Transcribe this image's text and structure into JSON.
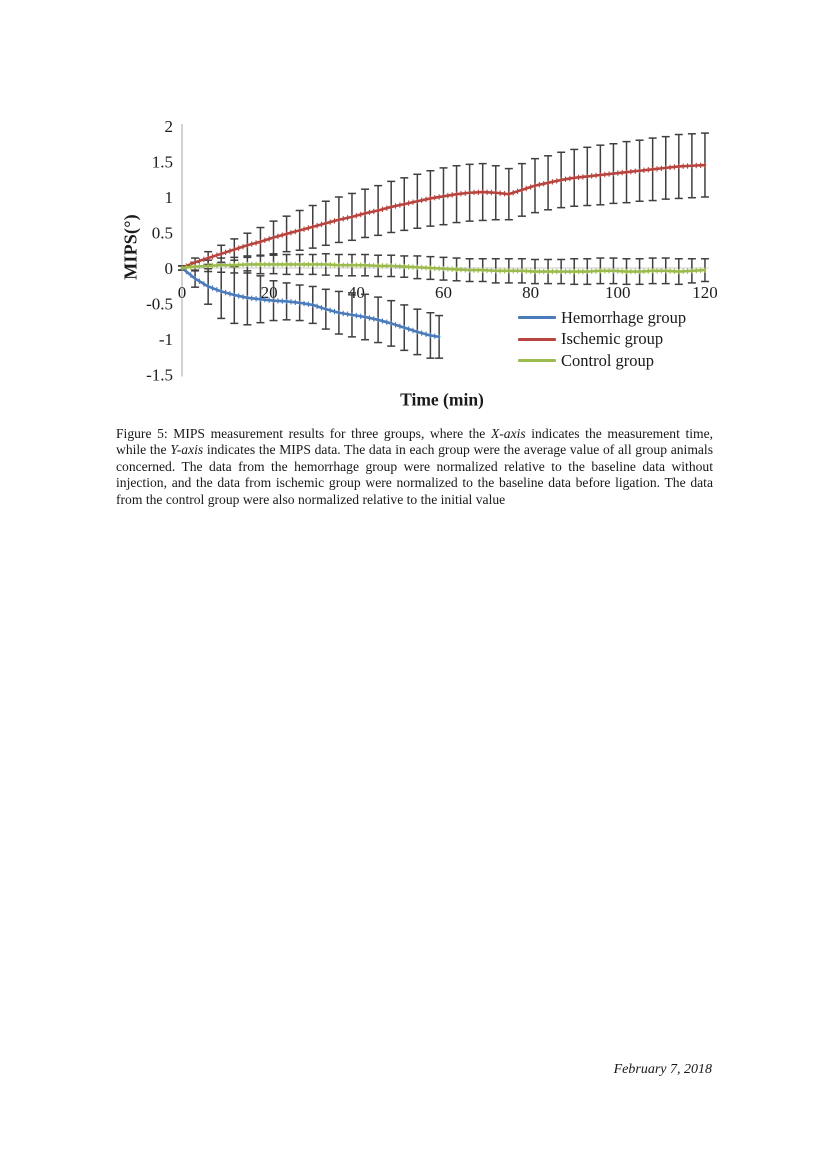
{
  "caption": {
    "part1": "Figure 5: MIPS measurement results for three groups, where the ",
    "italic1": "X-axis",
    "part2": " indicates the measurement time, while the ",
    "italic2": "Y-axis",
    "part3": " indicates the MIPS data. The data in each group were the average value of all group animals concerned. The data from the hemorrhage group were normalized relative to the baseline data without injection, and the data from ischemic group were normalized to the baseline data before ligation. The data from the control group were also normalized relative to the initial value"
  },
  "footer": {
    "date": "February 7, 2018"
  },
  "chart_data": {
    "type": "line",
    "title": "",
    "xlabel": "Time (min)",
    "ylabel": "MIPS(°)",
    "xlim": [
      0,
      120
    ],
    "ylim": [
      -1.5,
      2
    ],
    "xticks": [
      0,
      20,
      40,
      60,
      80,
      100,
      120
    ],
    "yticks": [
      -1.5,
      -1,
      -0.5,
      0,
      0.5,
      1,
      1.5,
      2
    ],
    "grid": false,
    "error_bars": true,
    "legend_position": "inside-lower-right",
    "colors": {
      "error_bar": "#3f3f3f",
      "axis_line": "#c6c6c6",
      "zero_line": "#cccccc",
      "tick_text": "#1d1d1d"
    },
    "series": [
      {
        "name": "Hemorrhage group",
        "color": "#4b7bbb",
        "x": [
          0,
          3,
          6,
          9,
          12,
          15,
          18,
          21,
          24,
          27,
          30,
          33,
          36,
          39,
          42,
          45,
          48,
          51,
          54,
          57,
          59
        ],
        "y": [
          0,
          -0.15,
          -0.26,
          -0.33,
          -0.38,
          -0.42,
          -0.44,
          -0.46,
          -0.47,
          -0.49,
          -0.52,
          -0.58,
          -0.63,
          -0.66,
          -0.69,
          -0.73,
          -0.78,
          -0.84,
          -0.9,
          -0.95,
          -0.97
        ],
        "err": [
          0.03,
          0.12,
          0.25,
          0.38,
          0.4,
          0.38,
          0.33,
          0.28,
          0.26,
          0.25,
          0.26,
          0.28,
          0.3,
          0.31,
          0.32,
          0.32,
          0.32,
          0.32,
          0.32,
          0.32,
          0.3
        ]
      },
      {
        "name": "Ischemic group",
        "color": "#b7443e",
        "x": [
          0,
          3,
          6,
          9,
          12,
          15,
          18,
          21,
          24,
          27,
          30,
          33,
          36,
          39,
          42,
          45,
          48,
          51,
          54,
          57,
          60,
          63,
          66,
          69,
          72,
          75,
          78,
          81,
          84,
          87,
          90,
          93,
          96,
          99,
          102,
          105,
          108,
          111,
          114,
          117,
          120
        ],
        "y": [
          0,
          0.08,
          0.14,
          0.2,
          0.26,
          0.32,
          0.37,
          0.43,
          0.48,
          0.53,
          0.58,
          0.63,
          0.68,
          0.72,
          0.77,
          0.81,
          0.86,
          0.9,
          0.94,
          0.98,
          1.01,
          1.04,
          1.06,
          1.07,
          1.06,
          1.04,
          1.1,
          1.16,
          1.2,
          1.24,
          1.27,
          1.29,
          1.31,
          1.33,
          1.35,
          1.37,
          1.39,
          1.41,
          1.43,
          1.44,
          1.45
        ],
        "err": [
          0.03,
          0.06,
          0.09,
          0.12,
          0.15,
          0.17,
          0.2,
          0.23,
          0.25,
          0.28,
          0.3,
          0.31,
          0.32,
          0.33,
          0.34,
          0.35,
          0.36,
          0.37,
          0.38,
          0.39,
          0.4,
          0.4,
          0.4,
          0.4,
          0.38,
          0.36,
          0.37,
          0.38,
          0.38,
          0.39,
          0.4,
          0.41,
          0.42,
          0.42,
          0.43,
          0.43,
          0.44,
          0.44,
          0.45,
          0.45,
          0.45
        ]
      },
      {
        "name": "Control group",
        "color": "#9cbb4e",
        "x": [
          0,
          3,
          6,
          9,
          12,
          15,
          18,
          21,
          24,
          27,
          30,
          33,
          36,
          39,
          42,
          45,
          48,
          51,
          54,
          57,
          60,
          63,
          66,
          69,
          72,
          75,
          78,
          81,
          84,
          87,
          90,
          93,
          96,
          99,
          102,
          105,
          108,
          111,
          114,
          117,
          120
        ],
        "y": [
          0,
          0.02,
          0.03,
          0.04,
          0.04,
          0.05,
          0.05,
          0.05,
          0.05,
          0.05,
          0.05,
          0.05,
          0.04,
          0.04,
          0.04,
          0.03,
          0.03,
          0.02,
          0.01,
          0,
          -0.01,
          -0.02,
          -0.03,
          -0.03,
          -0.04,
          -0.04,
          -0.04,
          -0.05,
          -0.05,
          -0.05,
          -0.05,
          -0.05,
          -0.04,
          -0.04,
          -0.05,
          -0.05,
          -0.04,
          -0.04,
          -0.05,
          -0.04,
          -0.03
        ],
        "err": [
          0.03,
          0.06,
          0.08,
          0.1,
          0.11,
          0.12,
          0.13,
          0.13,
          0.14,
          0.14,
          0.14,
          0.15,
          0.15,
          0.15,
          0.15,
          0.15,
          0.15,
          0.15,
          0.16,
          0.16,
          0.16,
          0.16,
          0.16,
          0.16,
          0.17,
          0.17,
          0.17,
          0.17,
          0.17,
          0.17,
          0.18,
          0.18,
          0.18,
          0.18,
          0.18,
          0.18,
          0.18,
          0.18,
          0.18,
          0.17,
          0.16
        ]
      }
    ]
  }
}
